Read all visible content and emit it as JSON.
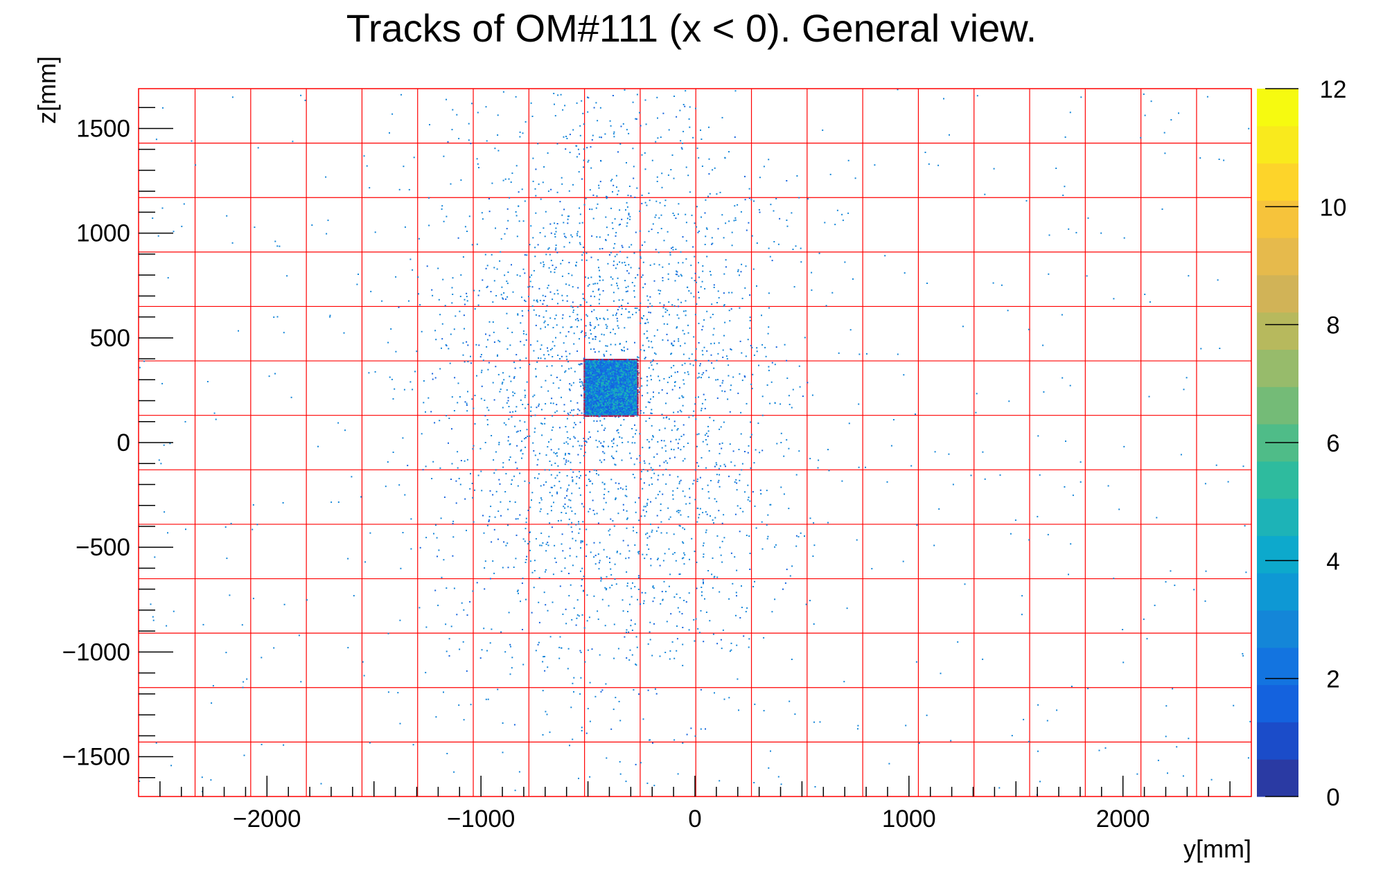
{
  "chart_data": {
    "type": "heatmap",
    "title": "Tracks of OM#111 (x < 0). General view.",
    "xlabel": "y[mm]",
    "ylabel": "z[mm]",
    "xlim": [
      -2600,
      2600
    ],
    "ylim": [
      -1690,
      1690
    ],
    "x_ticks": [
      -2000,
      -1000,
      0,
      1000,
      2000
    ],
    "x_tick_labels": [
      "−2000",
      "−1000",
      "0",
      "1000",
      "2000"
    ],
    "y_ticks": [
      -1500,
      -1000,
      -500,
      0,
      500,
      1000,
      1500
    ],
    "y_tick_labels": [
      "−1500",
      "−1000",
      "−500",
      "0",
      "500",
      "1000",
      "1500"
    ],
    "grid": true,
    "grid_color": "#ff0000",
    "grid_x": [
      -2336,
      -2076,
      -1816,
      -1556,
      -1296,
      -1036,
      -776,
      -516,
      -256,
      4,
      264,
      524,
      784,
      1044,
      1304,
      1564,
      1824,
      2084,
      2344
    ],
    "grid_y": [
      -1430,
      -1170,
      -910,
      -650,
      -390,
      -130,
      130,
      390,
      650,
      910,
      1170,
      1430
    ],
    "dense_region": {
      "x": [
        -520,
        -270
      ],
      "z": [
        130,
        400
      ],
      "level": 3
    },
    "colorbar": {
      "min": 0,
      "max": 12,
      "ticks": [
        0,
        2,
        4,
        6,
        8,
        10,
        12
      ],
      "tick_labels": [
        "0",
        "2",
        "4",
        "6",
        "8",
        "10",
        "12"
      ],
      "colors": [
        "#2a3aa3",
        "#1b4cc9",
        "#1462de",
        "#1374e0",
        "#1486d8",
        "#0e98d4",
        "#0da9cc",
        "#1db3b7",
        "#2ebb9e",
        "#4fbc88",
        "#74bb77",
        "#97bb6b",
        "#b7b95d",
        "#d1b357",
        "#e6ba4c",
        "#f6c33b",
        "#fdd42a",
        "#f9ea1d",
        "#f6fa10"
      ]
    }
  }
}
